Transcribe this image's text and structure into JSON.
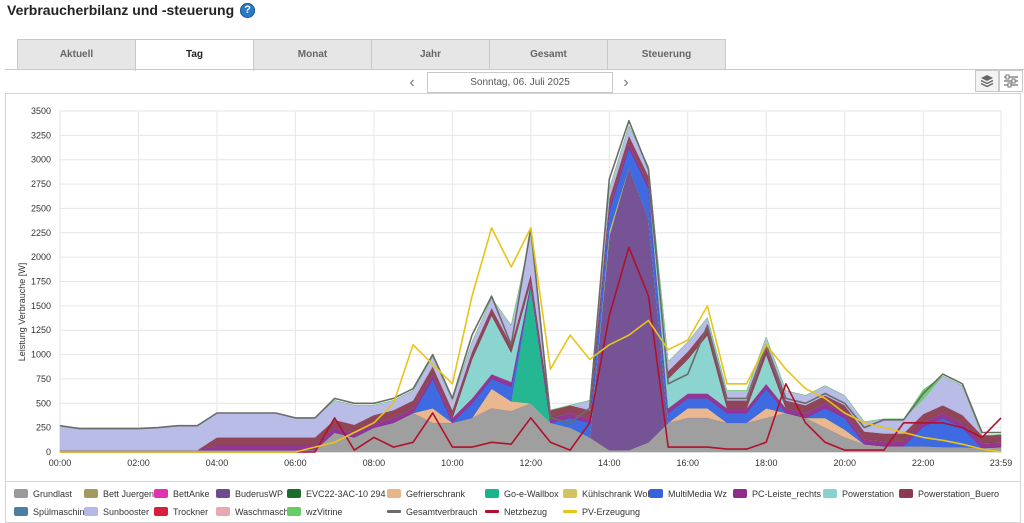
{
  "page": {
    "title": "Verbraucherbilanz und -steuerung",
    "help_icon": "help-icon"
  },
  "tabs": [
    {
      "label": "Aktuell",
      "active": false
    },
    {
      "label": "Tag",
      "active": true
    },
    {
      "label": "Monat",
      "active": false
    },
    {
      "label": "Jahr",
      "active": false
    },
    {
      "label": "Gesamt",
      "active": false
    },
    {
      "label": "Steuerung",
      "active": false
    }
  ],
  "date_nav": {
    "prev_icon": "chevron-left-icon",
    "date": "Sonntag, 06. Juli 2025",
    "next_icon": "chevron-right-icon"
  },
  "view_buttons": [
    "stacked-layers-icon",
    "sliders-icon"
  ],
  "chart_data": {
    "type": "area",
    "ylabel": "Leistung Verbrauche [W]",
    "ylim": [
      0,
      3500
    ],
    "yticks": [
      0,
      250,
      500,
      750,
      1000,
      1250,
      1500,
      1750,
      2000,
      2250,
      2500,
      2750,
      3000,
      3250,
      3500
    ],
    "xticks": [
      "00:00",
      "02:00",
      "04:00",
      "06:00",
      "08:00",
      "10:00",
      "12:00",
      "14:00",
      "16:00",
      "18:00",
      "20:00",
      "22:00",
      "23:59"
    ],
    "grid": true,
    "legend_position": "bottom",
    "x": [
      "00:00",
      "00:30",
      "01:00",
      "01:30",
      "02:00",
      "02:30",
      "03:00",
      "03:30",
      "04:00",
      "04:30",
      "05:00",
      "05:30",
      "06:00",
      "06:30",
      "07:00",
      "07:30",
      "08:00",
      "08:30",
      "09:00",
      "09:30",
      "10:00",
      "10:30",
      "11:00",
      "11:30",
      "12:00",
      "12:30",
      "13:00",
      "13:30",
      "14:00",
      "14:30",
      "15:00",
      "15:30",
      "16:00",
      "16:30",
      "17:00",
      "17:30",
      "18:00",
      "18:30",
      "19:00",
      "19:30",
      "20:00",
      "20:30",
      "21:00",
      "21:30",
      "22:00",
      "22:30",
      "23:00",
      "23:30",
      "23:59"
    ],
    "series": [
      {
        "name": "Grundlast",
        "kind": "area",
        "color": "#9a9a9a",
        "values": [
          20,
          20,
          20,
          20,
          20,
          20,
          20,
          20,
          20,
          20,
          20,
          20,
          20,
          20,
          200,
          150,
          250,
          300,
          400,
          300,
          300,
          350,
          450,
          420,
          500,
          300,
          250,
          150,
          20,
          20,
          100,
          300,
          350,
          350,
          300,
          300,
          350,
          400,
          350,
          250,
          150,
          80,
          60,
          60,
          60,
          50,
          50,
          40,
          50
        ]
      },
      {
        "name": "Bett Juergen",
        "kind": "area",
        "color": "#a39a5e",
        "values": [
          0,
          0,
          0,
          0,
          0,
          0,
          0,
          0,
          0,
          0,
          0,
          0,
          0,
          0,
          0,
          0,
          0,
          0,
          0,
          0,
          0,
          0,
          0,
          0,
          0,
          0,
          0,
          0,
          0,
          0,
          0,
          0,
          0,
          0,
          0,
          0,
          0,
          0,
          0,
          0,
          0,
          0,
          0,
          0,
          0,
          0,
          0,
          0,
          0
        ]
      },
      {
        "name": "BettAnke",
        "kind": "area",
        "color": "#e033b4",
        "values": [
          0,
          0,
          0,
          0,
          0,
          0,
          0,
          0,
          0,
          0,
          0,
          0,
          0,
          0,
          0,
          0,
          0,
          0,
          0,
          0,
          0,
          0,
          0,
          0,
          0,
          0,
          0,
          0,
          0,
          0,
          0,
          0,
          0,
          0,
          0,
          0,
          0,
          0,
          0,
          0,
          0,
          0,
          0,
          0,
          0,
          0,
          0,
          0,
          0
        ]
      },
      {
        "name": "BuderusWP",
        "kind": "area",
        "color": "#6e4a8e",
        "values": [
          0,
          0,
          0,
          0,
          0,
          0,
          0,
          0,
          0,
          0,
          0,
          0,
          0,
          0,
          0,
          0,
          0,
          0,
          0,
          0,
          0,
          0,
          0,
          0,
          0,
          0,
          0,
          0,
          2200,
          2900,
          2300,
          0,
          0,
          0,
          0,
          0,
          0,
          0,
          0,
          0,
          0,
          0,
          0,
          0,
          0,
          0,
          0,
          0,
          0
        ]
      },
      {
        "name": "EVC22-3AC-10 294",
        "kind": "area",
        "color": "#1e6b2e",
        "values": [
          0,
          0,
          0,
          0,
          0,
          0,
          0,
          0,
          0,
          0,
          0,
          0,
          0,
          0,
          0,
          0,
          0,
          0,
          0,
          0,
          0,
          0,
          0,
          0,
          0,
          0,
          0,
          0,
          0,
          0,
          0,
          0,
          0,
          0,
          0,
          0,
          0,
          0,
          0,
          0,
          0,
          0,
          0,
          0,
          0,
          0,
          0,
          0,
          0
        ]
      },
      {
        "name": "Gefrierschrank",
        "kind": "area",
        "color": "#e8b48a",
        "values": [
          0,
          0,
          0,
          0,
          0,
          0,
          0,
          0,
          0,
          0,
          0,
          0,
          0,
          0,
          0,
          0,
          0,
          0,
          0,
          150,
          0,
          0,
          200,
          100,
          0,
          0,
          0,
          0,
          0,
          0,
          0,
          0,
          100,
          100,
          0,
          0,
          100,
          0,
          0,
          100,
          80,
          0,
          0,
          0,
          0,
          0,
          0,
          0,
          0
        ]
      },
      {
        "name": "Go-e-Wallbox",
        "kind": "area",
        "color": "#19b38c",
        "values": [
          0,
          0,
          0,
          0,
          0,
          0,
          0,
          0,
          0,
          0,
          0,
          0,
          0,
          0,
          0,
          0,
          0,
          0,
          0,
          0,
          0,
          0,
          0,
          0,
          1200,
          0,
          0,
          0,
          0,
          0,
          0,
          0,
          0,
          0,
          0,
          0,
          0,
          0,
          0,
          0,
          0,
          0,
          0,
          0,
          0,
          0,
          0,
          0,
          0
        ]
      },
      {
        "name": "Kühlschrank Wohnz",
        "kind": "area",
        "color": "#d4c25c",
        "values": [
          0,
          0,
          0,
          0,
          0,
          0,
          0,
          0,
          0,
          0,
          0,
          0,
          0,
          0,
          0,
          0,
          0,
          0,
          0,
          0,
          0,
          0,
          0,
          0,
          0,
          0,
          0,
          0,
          50,
          0,
          0,
          0,
          0,
          0,
          0,
          0,
          0,
          0,
          0,
          0,
          0,
          0,
          0,
          0,
          0,
          0,
          0,
          0,
          0
        ]
      },
      {
        "name": "MultiMedia Wz",
        "kind": "area",
        "color": "#3563e0",
        "values": [
          0,
          0,
          0,
          0,
          0,
          0,
          0,
          0,
          0,
          0,
          0,
          0,
          0,
          0,
          0,
          0,
          0,
          0,
          0,
          300,
          0,
          150,
          100,
          150,
          0,
          0,
          100,
          150,
          200,
          200,
          300,
          100,
          100,
          100,
          100,
          100,
          200,
          0,
          0,
          100,
          120,
          0,
          0,
          0,
          200,
          300,
          200,
          0,
          0
        ]
      },
      {
        "name": "PC-Leiste_rechts",
        "kind": "area",
        "color": "#8e2c8e",
        "values": [
          0,
          0,
          0,
          0,
          0,
          0,
          0,
          0,
          50,
          50,
          50,
          50,
          50,
          50,
          50,
          50,
          50,
          50,
          50,
          50,
          50,
          50,
          50,
          50,
          50,
          50,
          50,
          50,
          50,
          50,
          50,
          50,
          50,
          50,
          50,
          50,
          50,
          50,
          50,
          50,
          50,
          50,
          50,
          50,
          50,
          50,
          50,
          50,
          50
        ]
      },
      {
        "name": "Powerstation",
        "kind": "area",
        "color": "#86d2cc",
        "values": [
          0,
          0,
          0,
          0,
          0,
          0,
          0,
          0,
          0,
          0,
          0,
          0,
          0,
          0,
          0,
          0,
          0,
          0,
          0,
          0,
          0,
          400,
          600,
          300,
          0,
          0,
          0,
          0,
          0,
          0,
          0,
          300,
          350,
          600,
          0,
          0,
          300,
          0,
          0,
          0,
          0,
          0,
          0,
          0,
          0,
          0,
          0,
          0,
          0
        ]
      },
      {
        "name": "Powerstation_Buero",
        "kind": "area",
        "color": "#8a3b4f",
        "values": [
          0,
          0,
          0,
          0,
          0,
          0,
          0,
          0,
          80,
          80,
          80,
          80,
          80,
          80,
          80,
          80,
          80,
          80,
          80,
          80,
          80,
          80,
          80,
          80,
          80,
          80,
          80,
          80,
          80,
          80,
          80,
          80,
          80,
          80,
          80,
          80,
          80,
          80,
          80,
          80,
          80,
          80,
          80,
          80,
          80,
          80,
          80,
          80,
          80
        ]
      },
      {
        "name": "Spülmaschine",
        "kind": "area",
        "color": "#4a7fa3",
        "values": [
          0,
          0,
          0,
          0,
          0,
          0,
          0,
          0,
          0,
          0,
          0,
          0,
          0,
          0,
          0,
          0,
          0,
          0,
          0,
          0,
          0,
          0,
          0,
          0,
          0,
          0,
          0,
          0,
          0,
          0,
          0,
          0,
          0,
          0,
          0,
          0,
          0,
          0,
          0,
          0,
          0,
          0,
          0,
          0,
          0,
          0,
          0,
          0,
          0
        ]
      },
      {
        "name": "Sunbooster",
        "kind": "area",
        "color": "#b4b8e6",
        "values": [
          250,
          220,
          220,
          220,
          220,
          230,
          250,
          250,
          250,
          250,
          250,
          250,
          200,
          200,
          200,
          200,
          100,
          100,
          100,
          100,
          100,
          100,
          100,
          200,
          400,
          0,
          0,
          100,
          100,
          100,
          100,
          100,
          100,
          100,
          100,
          100,
          100,
          100,
          100,
          100,
          100,
          100,
          150,
          150,
          150,
          300,
          300,
          0,
          0
        ]
      },
      {
        "name": "Trockner",
        "kind": "area",
        "color": "#d81e3e",
        "values": [
          0,
          0,
          0,
          0,
          0,
          0,
          0,
          0,
          0,
          0,
          0,
          0,
          0,
          0,
          0,
          0,
          0,
          0,
          0,
          0,
          0,
          0,
          0,
          0,
          0,
          0,
          0,
          0,
          0,
          0,
          0,
          0,
          0,
          0,
          0,
          0,
          0,
          0,
          0,
          0,
          0,
          0,
          0,
          0,
          0,
          0,
          0,
          0,
          0
        ]
      },
      {
        "name": "Waschmaschine",
        "kind": "area",
        "color": "#e8a8b4",
        "values": [
          0,
          0,
          0,
          0,
          0,
          0,
          0,
          0,
          0,
          0,
          0,
          0,
          0,
          0,
          0,
          0,
          0,
          0,
          0,
          0,
          0,
          0,
          0,
          0,
          0,
          0,
          0,
          0,
          0,
          0,
          0,
          0,
          0,
          0,
          0,
          0,
          0,
          0,
          0,
          0,
          0,
          0,
          0,
          0,
          0,
          0,
          0,
          0,
          0
        ]
      },
      {
        "name": "wzVitrine",
        "kind": "area",
        "color": "#66cc66",
        "values": [
          0,
          0,
          0,
          0,
          0,
          0,
          0,
          0,
          0,
          0,
          0,
          0,
          0,
          0,
          0,
          0,
          0,
          0,
          0,
          0,
          0,
          0,
          0,
          0,
          0,
          0,
          0,
          0,
          0,
          0,
          0,
          0,
          0,
          0,
          0,
          0,
          0,
          0,
          0,
          0,
          0,
          0,
          0,
          0,
          100,
          0,
          0,
          0,
          0
        ]
      },
      {
        "name": "Gesamtverbrauch",
        "kind": "line",
        "color": "#6b6b6b",
        "values": [
          270,
          240,
          240,
          240,
          240,
          250,
          270,
          270,
          400,
          400,
          400,
          400,
          350,
          350,
          550,
          500,
          500,
          550,
          650,
          1000,
          550,
          1200,
          1600,
          1100,
          2300,
          350,
          300,
          450,
          2800,
          3400,
          2900,
          700,
          800,
          1300,
          550,
          550,
          1100,
          550,
          500,
          600,
          500,
          250,
          330,
          330,
          600,
          800,
          700,
          200,
          200
        ]
      },
      {
        "name": "Netzbezug",
        "kind": "line",
        "color": "#b0112b",
        "values": [
          0,
          0,
          0,
          0,
          0,
          0,
          0,
          0,
          0,
          0,
          0,
          0,
          0,
          0,
          350,
          20,
          150,
          50,
          100,
          400,
          50,
          50,
          100,
          80,
          350,
          100,
          20,
          300,
          1400,
          2100,
          1600,
          50,
          50,
          50,
          30,
          30,
          100,
          700,
          300,
          100,
          20,
          20,
          20,
          300,
          300,
          300,
          250,
          150,
          350
        ]
      },
      {
        "name": "PV-Erzeugung",
        "kind": "line",
        "color": "#e8c41a",
        "values": [
          0,
          0,
          0,
          0,
          0,
          0,
          0,
          0,
          0,
          0,
          0,
          0,
          0,
          50,
          100,
          200,
          300,
          500,
          1100,
          900,
          700,
          1600,
          2300,
          1900,
          2300,
          850,
          1200,
          950,
          1100,
          1200,
          1350,
          1050,
          1150,
          1500,
          700,
          700,
          1100,
          850,
          650,
          550,
          400,
          300,
          250,
          200,
          150,
          120,
          80,
          30,
          0
        ]
      }
    ]
  }
}
